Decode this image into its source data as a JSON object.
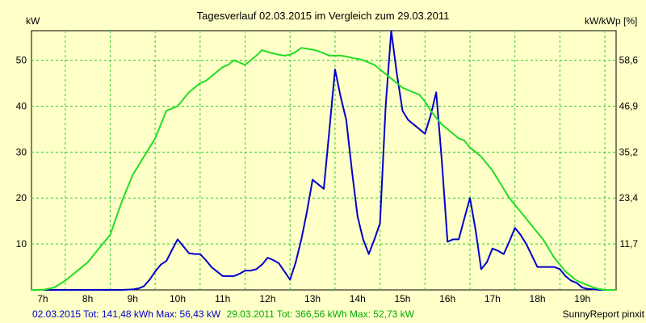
{
  "chart_data": {
    "type": "line",
    "title": "Tagesverlauf 02.03.2015 im Vergleich zum 29.03.2011",
    "ylabel_left": "kW",
    "ylabel_right": "kW/kWp [%]",
    "x_ticks": [
      "7h",
      "8h",
      "9h",
      "10h",
      "11h",
      "12h",
      "13h",
      "14h",
      "15h",
      "16h",
      "17h",
      "18h",
      "19h"
    ],
    "y_ticks_left": [
      "10",
      "20",
      "30",
      "40",
      "50"
    ],
    "y_ticks_right": [
      "11,7",
      "23,4",
      "35,2",
      "46,9",
      "58,6"
    ],
    "xlim": [
      6.75,
      19.75
    ],
    "ylim": [
      0,
      56.43
    ],
    "grid": true,
    "series": [
      {
        "name": "02.03.2015",
        "color": "#0000cc",
        "x": [
          6.75,
          7.0,
          7.25,
          7.5,
          7.75,
          8.0,
          8.25,
          8.5,
          8.75,
          9.0,
          9.125,
          9.25,
          9.375,
          9.5,
          9.625,
          9.75,
          9.875,
          10.0,
          10.125,
          10.25,
          10.375,
          10.5,
          10.625,
          10.75,
          10.875,
          11.0,
          11.125,
          11.25,
          11.375,
          11.5,
          11.625,
          11.75,
          11.875,
          12.0,
          12.125,
          12.25,
          12.375,
          12.5,
          12.625,
          12.75,
          12.875,
          13.0,
          13.125,
          13.25,
          13.375,
          13.5,
          13.625,
          13.75,
          13.875,
          14.0,
          14.125,
          14.25,
          14.375,
          14.5,
          14.625,
          14.75,
          14.875,
          15.0,
          15.125,
          15.25,
          15.375,
          15.5,
          15.625,
          15.75,
          15.875,
          16.0,
          16.125,
          16.25,
          16.375,
          16.5,
          16.625,
          16.75,
          16.875,
          17.0,
          17.125,
          17.25,
          17.375,
          17.5,
          17.625,
          17.75,
          17.875,
          18.0,
          18.125,
          18.25,
          18.375,
          18.5,
          18.625,
          18.75,
          18.875,
          19.0,
          19.125,
          19.25,
          19.375,
          19.5,
          19.625,
          19.75
        ],
        "values": [
          0,
          0,
          0,
          0,
          0,
          0,
          0,
          0,
          0,
          0.1,
          0.3,
          0.8,
          2.2,
          4.0,
          5.5,
          6.3,
          8.7,
          11.0,
          9.5,
          8.0,
          7.8,
          7.8,
          6.5,
          5.0,
          4.0,
          3.0,
          3.0,
          3.0,
          3.5,
          4.2,
          4.2,
          4.5,
          5.5,
          7.0,
          6.5,
          5.8,
          4.0,
          2.2,
          6.0,
          11.0,
          17.0,
          24.0,
          23.0,
          22.0,
          35.0,
          48.0,
          42.0,
          37.0,
          26.0,
          16.0,
          11.0,
          7.8,
          11.0,
          14.5,
          40.0,
          56.4,
          47.0,
          39.0,
          37.0,
          36.0,
          35.0,
          34.0,
          38.0,
          43.0,
          28.0,
          10.5,
          11.0,
          11.0,
          15.5,
          20.0,
          13.0,
          4.5,
          6.0,
          9.0,
          8.5,
          7.8,
          10.5,
          13.5,
          12.0,
          10.0,
          7.5,
          5.0,
          5.0,
          5.0,
          5.0,
          4.5,
          3.0,
          2.0,
          1.5,
          0.5,
          0.2,
          0.1,
          0,
          0,
          0,
          0
        ]
      },
      {
        "name": "29.03.2011",
        "color": "#22dd22",
        "x": [
          6.75,
          7.0,
          7.25,
          7.5,
          7.75,
          8.0,
          8.25,
          8.5,
          8.75,
          9.0,
          9.125,
          9.25,
          9.375,
          9.5,
          9.625,
          9.75,
          9.875,
          10.0,
          10.125,
          10.25,
          10.375,
          10.5,
          10.625,
          10.75,
          10.875,
          11.0,
          11.125,
          11.25,
          11.375,
          11.5,
          11.625,
          11.75,
          11.875,
          12.0,
          12.125,
          12.25,
          12.375,
          12.5,
          12.625,
          12.75,
          12.875,
          13.0,
          13.125,
          13.25,
          13.375,
          13.5,
          13.625,
          13.75,
          13.875,
          14.0,
          14.125,
          14.25,
          14.375,
          14.5,
          14.625,
          14.75,
          14.875,
          15.0,
          15.125,
          15.25,
          15.375,
          15.5,
          15.625,
          15.75,
          15.875,
          16.0,
          16.125,
          16.25,
          16.375,
          16.5,
          16.625,
          16.75,
          16.875,
          17.0,
          17.125,
          17.25,
          17.375,
          17.5,
          17.625,
          17.75,
          17.875,
          18.0,
          18.125,
          18.25,
          18.375,
          18.5,
          18.625,
          18.75,
          18.875,
          19.0,
          19.125,
          19.25,
          19.375,
          19.5,
          19.625,
          19.75
        ],
        "values": [
          0,
          0,
          0.5,
          2.0,
          4.0,
          6.0,
          9.0,
          12.0,
          19.0,
          25.0,
          27.0,
          29.0,
          31.0,
          33.0,
          36.0,
          39.0,
          39.5,
          40.0,
          41.5,
          43.0,
          44.0,
          45.0,
          45.5,
          46.5,
          47.5,
          48.5,
          49.0,
          50.0,
          49.5,
          49.0,
          50.0,
          51.0,
          52.2,
          51.8,
          51.5,
          51.2,
          51.0,
          51.2,
          51.8,
          52.7,
          52.5,
          52.3,
          52.0,
          51.5,
          51.0,
          51.0,
          51.0,
          50.8,
          50.5,
          50.3,
          50.0,
          49.5,
          49.0,
          48.0,
          47.0,
          46.0,
          45.0,
          44.0,
          43.5,
          43.0,
          42.5,
          41.0,
          39.0,
          37.5,
          36.0,
          35.0,
          34.0,
          33.0,
          32.5,
          31.0,
          30.0,
          29.0,
          27.5,
          26.0,
          24.0,
          22.0,
          20.0,
          18.5,
          17.0,
          15.5,
          14.0,
          12.5,
          11.0,
          9.0,
          7.0,
          5.5,
          4.0,
          3.0,
          2.0,
          1.5,
          1.0,
          0.5,
          0.2,
          0,
          0,
          0
        ]
      }
    ],
    "footer": {
      "blue_text": "02.03.2015 Tot: 141,48 kWh Max: 56,43 kW",
      "green_text": "29.03.2011 Tot: 366,56 kWh Max: 52,73 kW",
      "brand": "SunnyReport pinxit"
    }
  }
}
